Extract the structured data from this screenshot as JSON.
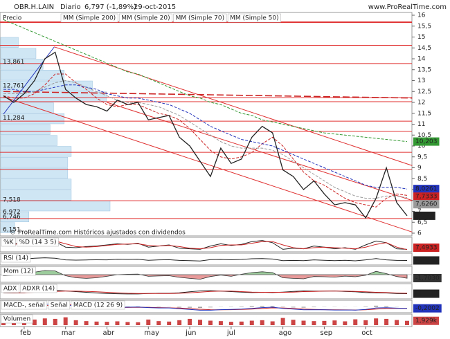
{
  "chart_data": [
    {
      "type": "line",
      "title": "OBR.H.LAIN",
      "subtitle": "Diario",
      "price_label": "6,797 (-1,89%)",
      "date": "29-oct-2015",
      "source": "www.ProRealTime.com",
      "footer": "© ProRealTime.com  Históricos ajustados con dividendos",
      "categories": [
        null,
        null,
        "feb",
        null,
        null,
        null,
        "mar",
        null,
        null,
        null,
        "abr",
        null,
        null,
        null,
        "may",
        null,
        null,
        null,
        "jun",
        null,
        null,
        null,
        "jul",
        null,
        null,
        null,
        null,
        "ago",
        null,
        null,
        null,
        "sep",
        null,
        null,
        null,
        "oct",
        null,
        null,
        null,
        null
      ],
      "ylim": [
        6,
        16
      ],
      "yticks": [
        6,
        {
          "value": 6.5,
          "label": "6,5"
        },
        7,
        {
          "value": 7.5,
          "label": "7,5"
        },
        8,
        {
          "value": 8.5,
          "label": "8,5"
        },
        9,
        {
          "value": 9.5,
          "label": "9,5"
        },
        10,
        {
          "value": 10.5,
          "label": "10,5"
        },
        11,
        {
          "value": 11.5,
          "label": "11,5"
        },
        12,
        {
          "value": 12.5,
          "label": "12,5"
        },
        13,
        {
          "value": 13.5,
          "label": "13,5"
        },
        14,
        {
          "value": 14.5,
          "label": "14,5"
        },
        15,
        {
          "value": 15.5,
          "label": "15,5"
        },
        16
      ],
      "series": [
        {
          "name": "Precio",
          "color": "#222222",
          "last_label": "6,797",
          "values": [
            12.3,
            12.0,
            12.4,
            13.0,
            14.0,
            14.3,
            12.6,
            12.2,
            11.9,
            11.8,
            11.6,
            12.1,
            11.9,
            12.0,
            11.2,
            11.3,
            11.4,
            10.4,
            10.0,
            9.3,
            8.6,
            9.9,
            9.2,
            9.4,
            10.4,
            10.9,
            10.6,
            8.9,
            8.6,
            8.0,
            8.4,
            7.8,
            7.3,
            7.4,
            7.3,
            6.7,
            7.6,
            9.0,
            7.4,
            6.797
          ]
        },
        {
          "name": "MM (Simple 200)",
          "color": "#339933",
          "dashed": true,
          "last_label": "10,203",
          "values": [
            15.8,
            15.6,
            15.4,
            15.2,
            15.0,
            14.8,
            14.6,
            14.4,
            14.2,
            14.0,
            13.8,
            13.6,
            13.4,
            13.3,
            13.1,
            12.9,
            12.7,
            12.5,
            12.3,
            12.2,
            12.0,
            11.9,
            11.7,
            11.5,
            11.4,
            11.2,
            11.1,
            11.0,
            10.9,
            10.8,
            10.7,
            10.6,
            10.55,
            10.5,
            10.45,
            10.4,
            10.35,
            10.3,
            10.25,
            10.203
          ]
        },
        {
          "name": "MM (Simple 20)",
          "color": "#cc2222",
          "dashed": true,
          "last_label": "7,7333",
          "values": [
            12.3,
            12.2,
            12.2,
            12.4,
            12.8,
            13.3,
            13.3,
            12.9,
            12.6,
            12.2,
            11.9,
            11.8,
            11.9,
            11.9,
            11.7,
            11.5,
            11.4,
            11.2,
            10.8,
            10.3,
            9.8,
            9.5,
            9.4,
            9.5,
            9.7,
            10.1,
            10.4,
            10.0,
            9.4,
            8.8,
            8.4,
            8.2,
            7.9,
            7.6,
            7.4,
            7.3,
            7.2,
            7.6,
            7.8,
            7.7333
          ]
        },
        {
          "name": "MM (Simple 70)",
          "color": "#2233bb",
          "dashed": true,
          "last_label": "8,0261",
          "values": [
            12.6,
            12.6,
            12.5,
            12.5,
            12.6,
            12.7,
            12.8,
            12.8,
            12.7,
            12.6,
            12.4,
            12.3,
            12.2,
            12.2,
            12.1,
            12.0,
            11.9,
            11.7,
            11.5,
            11.2,
            10.9,
            10.7,
            10.5,
            10.3,
            10.2,
            10.1,
            10.0,
            9.8,
            9.6,
            9.4,
            9.2,
            9.0,
            8.8,
            8.6,
            8.4,
            8.2,
            8.1,
            8.1,
            8.1,
            8.0261
          ]
        },
        {
          "name": "MM (Simple 50)",
          "color": "#999999",
          "dashed": true,
          "last_label": "7,6260",
          "values": [
            12.4,
            12.4,
            12.4,
            12.5,
            12.7,
            12.9,
            13.0,
            12.9,
            12.7,
            12.5,
            12.3,
            12.1,
            12.0,
            12.0,
            11.9,
            11.8,
            11.6,
            11.4,
            11.1,
            10.8,
            10.5,
            10.2,
            10.0,
            9.9,
            9.9,
            9.9,
            9.8,
            9.6,
            9.3,
            9.0,
            8.7,
            8.4,
            8.1,
            7.9,
            7.7,
            7.6,
            7.6,
            7.7,
            7.7,
            7.626
          ]
        }
      ],
      "hline_color": "#e03030",
      "horizontal_lines": [
        15.68,
        14.62,
        13.78,
        12.22,
        12.03,
        11.14,
        10.67,
        9.71,
        8.92,
        7.49,
        6.67
      ],
      "trend_lines": [
        {
          "color": "#e03030",
          "dashed": false,
          "points": [
            [
              4.9,
              14.55
            ],
            [
              39.5,
              9.1
            ]
          ]
        },
        {
          "color": "#e03030",
          "dashed": false,
          "points": [
            [
              0,
              12.25
            ],
            [
              39.5,
              6.05
            ]
          ]
        },
        {
          "color": "#e03030",
          "dashed": false,
          "points": [
            [
              10,
              12.0
            ],
            [
              39.5,
              7.5
            ]
          ]
        },
        {
          "color": "#cc2222",
          "dashed": true,
          "points": [
            [
              0,
              12.5
            ],
            [
              39.5,
              12.2
            ]
          ]
        },
        {
          "color": "#2233bb",
          "dashed": false,
          "points": [
            [
              0,
              11.46
            ],
            [
              4.9,
              14.54
            ]
          ]
        }
      ],
      "volume_profile": {
        "color": "#cfe6f5",
        "bins": [
          6,
          6.5,
          7,
          7.5,
          8,
          8.5,
          9,
          9.5,
          10,
          10.5,
          11,
          11.5,
          12,
          12.5,
          13,
          13.5,
          14,
          14.5,
          15
        ],
        "volumes": [
          20,
          40,
          155,
          100,
          100,
          95,
          95,
          100,
          80,
          70,
          90,
          75,
          150,
          130,
          90,
          60,
          50,
          25
        ]
      },
      "profile_labels": [
        {
          "value": 13.861,
          "label": "13,861"
        },
        {
          "value": 12.761,
          "label": "12,761"
        },
        {
          "value": 11.284,
          "label": "11,284"
        },
        {
          "value": 7.518,
          "label": "7,518"
        },
        {
          "value": 6.972,
          "label": "6,972"
        },
        {
          "value": 6.746,
          "label": "6,746"
        },
        {
          "value": 6.151,
          "label": "6,151"
        }
      ]
    },
    {
      "type": "line",
      "ylim": [
        0,
        100
      ],
      "series": [
        {
          "name": "%K",
          "color": "#222222",
          "values": [
            40,
            60,
            70,
            85,
            90,
            80,
            30,
            25,
            35,
            40,
            50,
            60,
            55,
            65,
            30,
            40,
            50,
            20,
            15,
            10,
            40,
            60,
            45,
            55,
            80,
            90,
            70,
            10,
            20,
            15,
            40,
            30,
            15,
            25,
            10,
            50,
            85,
            70,
            15,
            10
          ]
        },
        {
          "name": "%D (14 3 5)",
          "color": "#cc2222",
          "last_label": "7,4933",
          "values": [
            45,
            55,
            65,
            75,
            85,
            85,
            60,
            35,
            30,
            35,
            45,
            55,
            58,
            60,
            45,
            40,
            45,
            35,
            20,
            15,
            25,
            45,
            50,
            50,
            65,
            80,
            80,
            50,
            25,
            15,
            25,
            30,
            25,
            20,
            15,
            30,
            55,
            70,
            30,
            7.4933
          ]
        }
      ]
    },
    {
      "type": "line",
      "ylim": [
        0,
        100
      ],
      "series": [
        {
          "name": "RSI (14)",
          "color": "#222222",
          "last_label": "37,818",
          "values": [
            50,
            48,
            55,
            65,
            70,
            65,
            45,
            42,
            44,
            46,
            45,
            52,
            50,
            52,
            40,
            45,
            47,
            38,
            35,
            32,
            48,
            50,
            46,
            50,
            58,
            60,
            55,
            35,
            38,
            36,
            45,
            40,
            35,
            40,
            33,
            45,
            60,
            45,
            38,
            37.818
          ]
        }
      ]
    },
    {
      "type": "area",
      "ylim": [
        -3,
        3
      ],
      "up_color": "#9ccc9c",
      "down_color": "#e89a9a",
      "series": [
        {
          "name": "Mom (12)",
          "color": "#333333",
          "last_label": "-1,7030",
          "values": [
            -0.5,
            -0.2,
            0.3,
            1.2,
            2.0,
            1.8,
            -0.5,
            -1.5,
            -1.8,
            -1.5,
            -0.8,
            0,
            0.2,
            0.3,
            -0.8,
            -0.6,
            -0.5,
            -1.3,
            -1.8,
            -2.2,
            -0.9,
            -0.2,
            -0.8,
            0.2,
            1.0,
            1.4,
            1.0,
            -1.5,
            -1.8,
            -2.0,
            -0.9,
            -1.0,
            -1.2,
            -0.7,
            -1.0,
            -0.3,
            1.6,
            0.5,
            -0.9,
            -1.703
          ]
        }
      ]
    },
    {
      "type": "line",
      "ylim": [
        0,
        50
      ],
      "series": [
        {
          "name": "ADX",
          "color": "#222222",
          "last_label": "16,108",
          "values": [
            20,
            19,
            20,
            24,
            28,
            30,
            28,
            25,
            22,
            19,
            17,
            16,
            15,
            15,
            17,
            18,
            18,
            20,
            24,
            28,
            29,
            27,
            25,
            23,
            21,
            22,
            21,
            23,
            26,
            28,
            27,
            27,
            28,
            26,
            24,
            21,
            20,
            19,
            17,
            16.108
          ]
        },
        {
          "name": "ADXR (14)",
          "color": "#cc2222",
          "values": [
            21,
            20,
            20,
            22,
            24,
            26,
            27,
            27,
            26,
            24,
            22,
            20,
            18,
            17,
            17,
            17,
            17,
            18,
            20,
            23,
            26,
            27,
            27,
            25,
            23,
            22,
            22,
            22,
            23,
            25,
            26,
            27,
            27,
            27,
            26,
            24,
            22,
            21,
            19,
            18
          ]
        }
      ]
    },
    {
      "type": "macd",
      "ylim": [
        -0.6,
        0.6
      ],
      "series": [
        {
          "name": "MACD-, señal",
          "color": "#999999",
          "bars": true,
          "values": [
            -0.01,
            0.02,
            0.07,
            0.15,
            0.2,
            0.13,
            -0.05,
            -0.15,
            -0.17,
            -0.15,
            -0.09,
            -0.01,
            0.03,
            0.04,
            -0.03,
            -0.05,
            -0.02,
            -0.08,
            -0.11,
            -0.13,
            -0.07,
            0.02,
            0.03,
            0.05,
            0.1,
            0.12,
            0.09,
            -0.05,
            -0.08,
            -0.1,
            -0.05,
            -0.02,
            -0.02,
            -0.01,
            -0.01,
            0.05,
            0.15,
            0.1,
            0.02,
            0
          ]
        },
        {
          "name": "Señal",
          "color": "#cc2222",
          "values": [
            -0.04,
            -0.04,
            -0.02,
            0.05,
            0.15,
            0.25,
            0.3,
            0.25,
            0.15,
            0.05,
            -0.03,
            -0.07,
            -0.08,
            -0.06,
            -0.07,
            -0.1,
            -0.13,
            -0.17,
            -0.24,
            -0.32,
            -0.38,
            -0.4,
            -0.38,
            -0.35,
            -0.3,
            -0.22,
            -0.14,
            -0.15,
            -0.22,
            -0.3,
            -0.35,
            -0.38,
            -0.4,
            -0.41,
            -0.42,
            -0.4,
            -0.3,
            -0.22,
            -0.2,
            -0.2
          ]
        },
        {
          "name": "MACD (12 26 9)",
          "color": "#2233bb",
          "last_label": "-0,2002",
          "values": [
            -0.05,
            -0.02,
            0.05,
            0.2,
            0.35,
            0.38,
            0.25,
            0.1,
            -0.02,
            -0.1,
            -0.12,
            -0.08,
            -0.05,
            -0.02,
            -0.1,
            -0.15,
            -0.15,
            -0.25,
            -0.35,
            -0.45,
            -0.45,
            -0.38,
            -0.35,
            -0.3,
            -0.2,
            -0.1,
            -0.05,
            -0.2,
            -0.3,
            -0.4,
            -0.4,
            -0.4,
            -0.42,
            -0.42,
            -0.43,
            -0.35,
            -0.15,
            -0.12,
            -0.18,
            -0.2002
          ]
        }
      ]
    },
    {
      "type": "bar",
      "ylim": [
        0,
        4000
      ],
      "series": [
        {
          "name": "Volumen",
          "color": "#cc4444",
          "bars": true,
          "last_label": "1,929k",
          "values": [
            1500,
            1200,
            1800,
            2500,
            3000,
            2800,
            3500,
            2200,
            1800,
            1600,
            1500,
            1700,
            1400,
            1300,
            2500,
            1800,
            1600,
            2200,
            2800,
            2400,
            2000,
            1800,
            1500,
            1600,
            2000,
            2200,
            1700,
            3200,
            2400,
            2000,
            1800,
            1900,
            2100,
            1700,
            2600,
            2200,
            3000,
            2800,
            2300,
            1929
          ]
        }
      ]
    }
  ]
}
